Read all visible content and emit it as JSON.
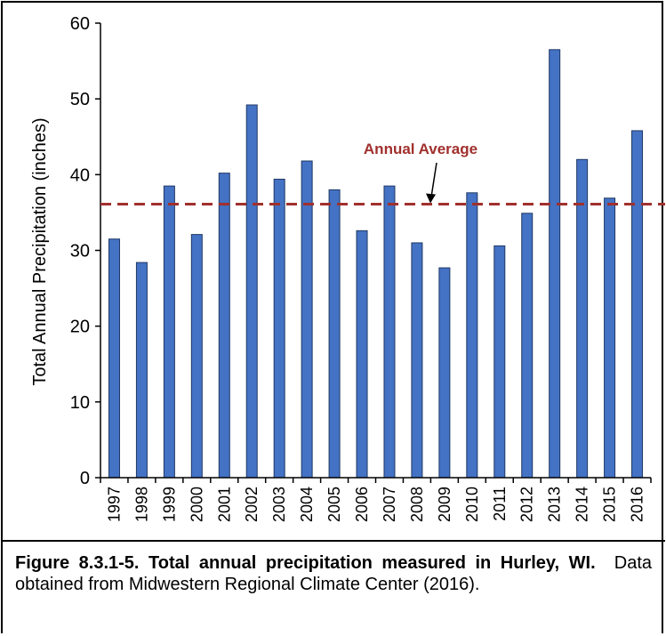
{
  "chart_data": {
    "type": "bar",
    "ylabel": "Total Annual Precipitation (inches)",
    "categories": [
      "1997",
      "1998",
      "1999",
      "2000",
      "2001",
      "2002",
      "2003",
      "2004",
      "2005",
      "2006",
      "2007",
      "2008",
      "2009",
      "2010",
      "2011",
      "2012",
      "2013",
      "2014",
      "2015",
      "2016"
    ],
    "values": [
      31.5,
      28.4,
      38.5,
      32.1,
      40.2,
      49.2,
      39.4,
      41.8,
      38.0,
      32.6,
      38.5,
      31.0,
      27.7,
      37.6,
      30.6,
      34.9,
      56.5,
      42.0,
      36.9,
      45.8
    ],
    "color": "#4472c4",
    "ylim": [
      0,
      60
    ],
    "yticks": [
      0,
      10,
      20,
      30,
      40,
      50,
      60
    ],
    "grid": false,
    "reference_line": {
      "value": 36.1,
      "label": "Annual Average",
      "color": "#a0302d"
    }
  },
  "caption": {
    "bold": "Figure 8.3.1-5.  Total annual precipitation measured in Hurley, WI.",
    "text": "Data obtained from Midwestern Regional Climate Center (2016)."
  }
}
